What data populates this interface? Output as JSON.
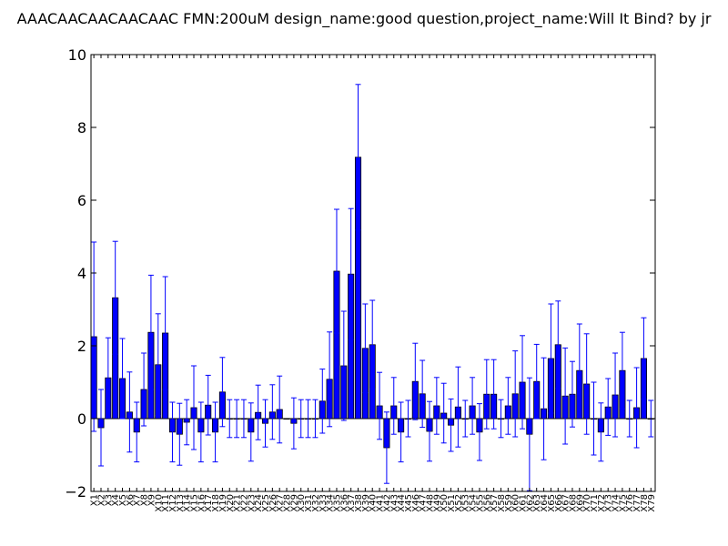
{
  "chart_data": {
    "type": "bar",
    "title": "AAACAACAACAACAAC  FMN:200uM  design_name:good question,project_name:Will It Bind? by jr",
    "xlabel": "",
    "ylabel": "",
    "ylim": [
      -2,
      10
    ],
    "yticks": [
      "−2",
      "0",
      "2",
      "4",
      "6",
      "8",
      "10"
    ],
    "grid": false,
    "bar_color": "#0000ff",
    "error_color": "#0000ff",
    "categories": [
      "X1",
      "X2",
      "X3",
      "X4",
      "X5",
      "X6",
      "X7",
      "X8",
      "X9",
      "X10",
      "X11",
      "X12",
      "X13",
      "X14",
      "X15",
      "X16",
      "X17",
      "X18",
      "X19",
      "X20",
      "X21",
      "X22",
      "X23",
      "X24",
      "X25",
      "X26",
      "X27",
      "X28",
      "X29",
      "X30",
      "X31",
      "X32",
      "X33",
      "X34",
      "X35",
      "X36",
      "X37",
      "X38",
      "X39",
      "X40",
      "X41",
      "X42",
      "X43",
      "X44",
      "X45",
      "X46",
      "X47",
      "X48",
      "X49",
      "X50",
      "X51",
      "X52",
      "X53",
      "X54",
      "X55",
      "X56",
      "X57",
      "X58",
      "X59",
      "X60",
      "X61",
      "X62",
      "X63",
      "X64",
      "X65",
      "X66",
      "X67",
      "X68",
      "X69",
      "X70",
      "X71",
      "X72",
      "X73",
      "X74",
      "X75",
      "X76",
      "X77",
      "X78",
      "X79"
    ],
    "values": [
      2.25,
      -0.25,
      1.12,
      3.32,
      1.1,
      0.18,
      -0.37,
      0.8,
      2.37,
      1.48,
      2.35,
      -0.37,
      -0.43,
      -0.1,
      0.3,
      -0.37,
      0.37,
      -0.37,
      0.73,
      0,
      0,
      0,
      -0.37,
      0.17,
      -0.13,
      0.18,
      0.25,
      0,
      -0.13,
      0,
      0,
      0,
      0.48,
      1.08,
      4.05,
      1.45,
      3.97,
      7.18,
      1.93,
      2.03,
      0.35,
      -0.8,
      0.35,
      -0.37,
      0,
      1.02,
      0.68,
      -0.35,
      0.35,
      0.15,
      -0.18,
      0.32,
      0,
      0.35,
      -0.37,
      0.67,
      0.67,
      0,
      0.35,
      0.68,
      1.0,
      -0.43,
      1.02,
      0.27,
      1.65,
      2.03,
      0.62,
      0.67,
      1.32,
      0.95,
      0,
      -0.37,
      0.32,
      0.65,
      1.32,
      0,
      0.3,
      1.65,
      0
    ],
    "errors": [
      2.6,
      1.05,
      1.1,
      1.55,
      1.1,
      1.1,
      0.82,
      1.0,
      1.57,
      1.4,
      1.55,
      0.82,
      0.85,
      0.62,
      1.15,
      0.82,
      0.82,
      0.82,
      0.95,
      0.52,
      0.52,
      0.52,
      0.8,
      0.75,
      0.65,
      0.75,
      0.92,
      0.0,
      0.7,
      0.52,
      0.52,
      0.52,
      0.88,
      1.3,
      1.7,
      1.5,
      1.8,
      2.0,
      1.22,
      1.22,
      0.92,
      0.98,
      0.78,
      0.82,
      0.5,
      1.05,
      0.92,
      0.82,
      0.78,
      0.82,
      0.72,
      1.1,
      0.5,
      0.78,
      0.78,
      0.95,
      0.95,
      0.52,
      0.78,
      1.18,
      1.28,
      1.55,
      1.02,
      1.4,
      1.5,
      1.2,
      1.32,
      0.9,
      1.28,
      1.38,
      1.0,
      0.8,
      0.78,
      1.15,
      1.05,
      0.5,
      1.1,
      1.12,
      0.5
    ]
  }
}
